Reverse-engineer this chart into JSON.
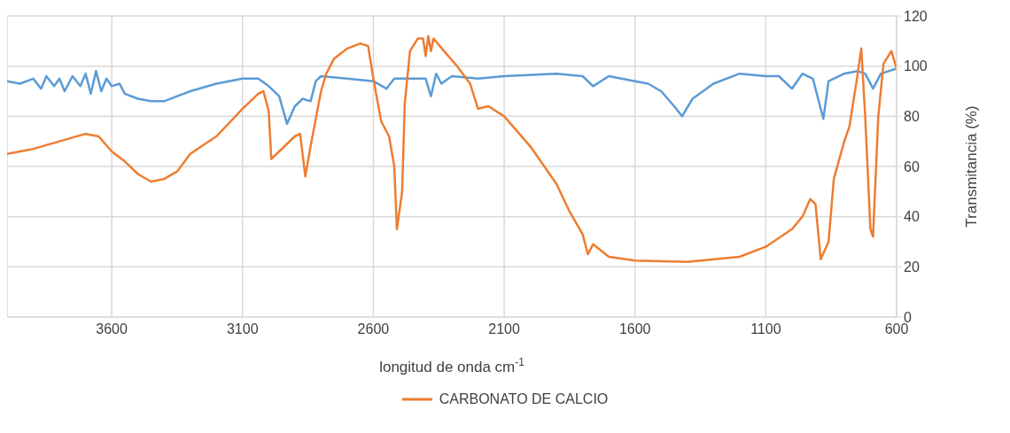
{
  "chart_data": {
    "type": "line",
    "xlabel": "longitud de onda cm$^{-1}$",
    "ylabel": "Transmitancia (%)",
    "xlim": [
      4000,
      600
    ],
    "xticks": [
      3600,
      3100,
      2600,
      2100,
      1600,
      1100,
      600
    ],
    "ylim": [
      0,
      120
    ],
    "yticks": [
      0,
      20,
      40,
      60,
      80,
      100,
      120
    ],
    "grid": true,
    "legend": "bottom",
    "marker": "none",
    "line_style": "solid",
    "series": [
      {
        "color": "#5b9bd5",
        "x": [
          4000,
          3950,
          3900,
          3870,
          3850,
          3820,
          3800,
          3780,
          3750,
          3720,
          3700,
          3680,
          3660,
          3640,
          3620,
          3600,
          3570,
          3550,
          3500,
          3450,
          3400,
          3350,
          3300,
          3200,
          3100,
          3040,
          3000,
          2960,
          2930,
          2900,
          2870,
          2840,
          2820,
          2800,
          2700,
          2600,
          2550,
          2520,
          2400,
          2380,
          2360,
          2340,
          2300,
          2200,
          2100,
          1900,
          1800,
          1760,
          1700,
          1600,
          1550,
          1500,
          1450,
          1420,
          1380,
          1300,
          1200,
          1100,
          1050,
          1000,
          960,
          920,
          880,
          860,
          800,
          750,
          720,
          690,
          660,
          600
        ],
        "values": [
          94,
          93,
          95,
          91,
          96,
          92,
          95,
          90,
          96,
          92,
          97,
          89,
          98,
          90,
          95,
          92,
          93,
          89,
          87,
          86,
          86,
          88,
          90,
          93,
          95,
          95,
          92,
          88,
          77,
          84,
          87,
          86,
          94,
          96,
          95,
          94,
          91,
          95,
          95,
          88,
          97,
          93,
          96,
          95,
          96,
          97,
          96,
          92,
          96,
          94,
          93,
          90,
          84,
          80,
          87,
          93,
          97,
          96,
          96,
          91,
          97,
          95,
          79,
          94,
          97,
          98,
          97,
          91,
          97,
          99
        ]
      },
      {
        "name": "CARBONATO DE CALCIO",
        "color": "#ed7d31",
        "x": [
          4000,
          3900,
          3800,
          3700,
          3650,
          3600,
          3550,
          3500,
          3450,
          3400,
          3350,
          3300,
          3200,
          3100,
          3040,
          3020,
          3000,
          2990,
          2960,
          2900,
          2880,
          2860,
          2840,
          2800,
          2780,
          2750,
          2700,
          2650,
          2620,
          2600,
          2570,
          2540,
          2520,
          2510,
          2490,
          2480,
          2460,
          2430,
          2410,
          2400,
          2390,
          2380,
          2370,
          2330,
          2280,
          2230,
          2200,
          2160,
          2100,
          2000,
          1900,
          1850,
          1800,
          1780,
          1760,
          1700,
          1600,
          1400,
          1200,
          1100,
          1000,
          960,
          930,
          910,
          890,
          860,
          840,
          800,
          780,
          750,
          735,
          720,
          700,
          690,
          670,
          650,
          620,
          600
        ],
        "values": [
          65,
          67,
          70,
          73,
          72,
          66,
          62,
          57,
          54,
          55,
          58,
          65,
          72,
          83,
          89,
          90,
          82,
          63,
          66,
          72,
          73,
          56,
          68,
          90,
          97,
          103,
          107,
          109,
          108,
          95,
          78,
          72,
          60,
          35,
          50,
          85,
          106,
          111,
          111,
          104,
          112,
          106,
          111,
          106,
          100,
          93,
          83,
          84,
          80,
          68,
          53,
          42,
          33,
          25,
          29,
          24,
          22.5,
          22,
          24,
          28,
          35,
          40,
          47,
          45,
          23,
          30,
          55,
          70,
          76,
          96,
          107,
          80,
          35,
          32,
          80,
          101,
          106,
          99
        ]
      }
    ]
  }
}
